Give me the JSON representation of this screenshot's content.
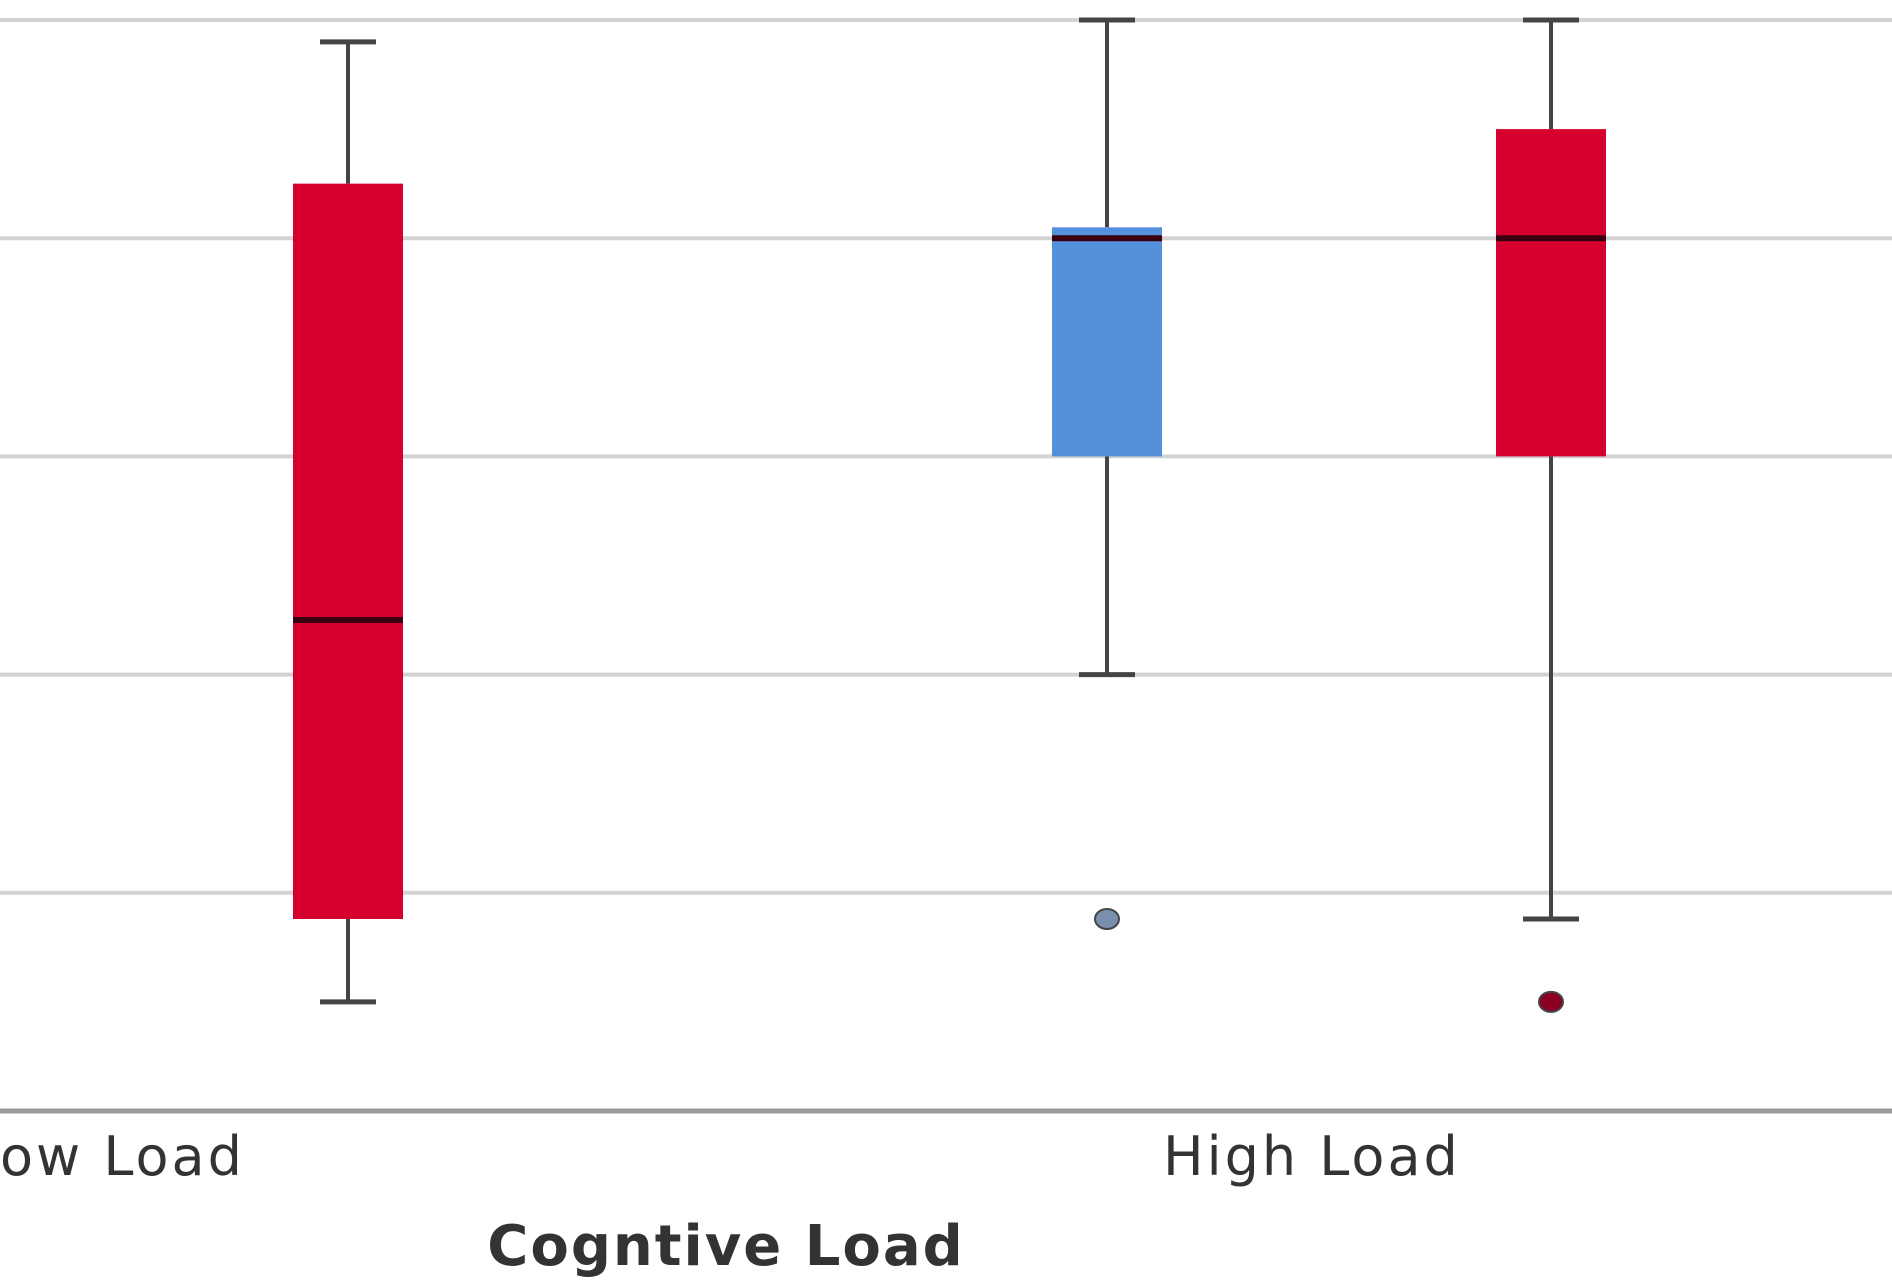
{
  "chart_data": {
    "type": "boxplot",
    "xlabel": "Cogntive Load",
    "ylabel": "",
    "categories": [
      "ow Load",
      "High Load"
    ],
    "ylim": [
      0,
      5
    ],
    "grid_values": [
      0,
      1,
      2,
      3,
      4,
      5
    ],
    "grid": true,
    "legend": "none",
    "colors": {
      "blue": "#5590dd",
      "red": "#d6002f",
      "grid": "#d3d3d3",
      "whisker": "#444444",
      "median": "#3a0010"
    },
    "boxes": [
      {
        "category": "ow Load",
        "color": "red",
        "min": 0.5,
        "q1": 0.88,
        "median": 2.25,
        "q3": 4.25,
        "max": 4.9,
        "outliers": []
      },
      {
        "category": "High Load",
        "color": "blue",
        "min": 2,
        "q1": 3,
        "median": 4,
        "q3": 4.05,
        "max": 5,
        "outliers": [
          0.88
        ]
      },
      {
        "category": "High Load",
        "color": "red",
        "min": 0.88,
        "q1": 3,
        "median": 4,
        "q3": 4.5,
        "max": 5,
        "outliers": [
          0.5
        ]
      }
    ]
  }
}
